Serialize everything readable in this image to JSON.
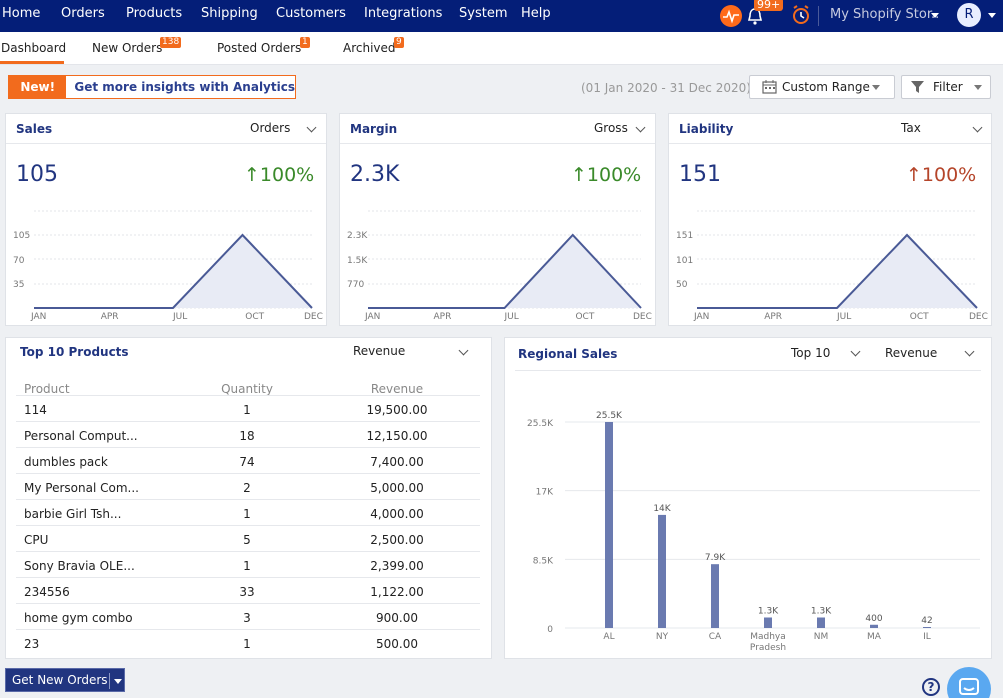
{
  "nav": {
    "items": [
      "Home",
      "Orders",
      "Products",
      "Shipping",
      "Customers",
      "Integrations",
      "System",
      "Help"
    ],
    "notification_count": "99+",
    "store": "My Shopify Stor..",
    "avatar_initial": "R"
  },
  "tabs": [
    {
      "label": "Dashboard",
      "badge": ""
    },
    {
      "label": "New Orders",
      "badge": "138"
    },
    {
      "label": "Posted Orders",
      "badge": "1"
    },
    {
      "label": "Archived",
      "badge": "9"
    }
  ],
  "banner": {
    "new_label": "New!",
    "text": "Get more insights with Analytics"
  },
  "toolbar": {
    "date_range": "(01 Jan 2020 - 31 Dec 2020)",
    "range_button": "Custom Range",
    "filter_button": "Filter"
  },
  "colors": {
    "navy": "#041e78",
    "accent": "#f26b1d",
    "title": "#213580",
    "up_green": "#2e8b2e",
    "up_red": "#b5452a",
    "chart_line": "#4a5a96",
    "chart_fill": "#e8ebf5",
    "bar": "#6a7ab0"
  },
  "cards": [
    {
      "title": "Sales",
      "select": "Orders",
      "value": "105",
      "change": "100%",
      "change_color": "#3a8a2a",
      "y_ticks": [
        "105",
        "70",
        "35"
      ],
      "x_ticks": [
        "JAN",
        "APR",
        "JUL",
        "OCT",
        "DEC"
      ]
    },
    {
      "title": "Margin",
      "select": "Gross",
      "value": "2.3K",
      "change": "100%",
      "change_color": "#3a8a2a",
      "y_ticks": [
        "2.3K",
        "1.5K",
        "770"
      ],
      "x_ticks": [
        "JAN",
        "APR",
        "JUL",
        "OCT",
        "DEC"
      ]
    },
    {
      "title": "Liability",
      "select": "Tax",
      "value": "151",
      "change": "100%",
      "change_color": "#b5452a",
      "y_ticks": [
        "151",
        "101",
        "50"
      ],
      "x_ticks": [
        "JAN",
        "APR",
        "JUL",
        "OCT",
        "DEC"
      ]
    }
  ],
  "top_products": {
    "title": "Top 10 Products",
    "select": "Revenue",
    "headers": [
      "Product",
      "Quantity",
      "Revenue"
    ],
    "rows": [
      [
        "114",
        "1",
        "19,500.00"
      ],
      [
        "Personal Comput...",
        "18",
        "12,150.00"
      ],
      [
        "dumbles pack",
        "74",
        "7,400.00"
      ],
      [
        "My Personal Com...",
        "2",
        "5,000.00"
      ],
      [
        "barbie Girl Tsh...",
        "1",
        "4,000.00"
      ],
      [
        "CPU",
        "5",
        "2,500.00"
      ],
      [
        "Sony Bravia OLE...",
        "1",
        "2,399.00"
      ],
      [
        "234556",
        "33",
        "1,122.00"
      ],
      [
        "home gym combo",
        "3",
        "900.00"
      ],
      [
        "23",
        "1",
        "500.00"
      ]
    ]
  },
  "regional": {
    "title": "Regional Sales",
    "select_top": "Top 10",
    "select_metric": "Revenue"
  },
  "chart_data": {
    "type": "bar",
    "categories": [
      "AL",
      "NY",
      "CA",
      "Madhya Pradesh",
      "NM",
      "MA",
      "IL"
    ],
    "category_labels": [
      [
        "AL"
      ],
      [
        "NY"
      ],
      [
        "CA"
      ],
      [
        "Madhya",
        "Pradesh"
      ],
      [
        "NM"
      ],
      [
        "MA"
      ],
      [
        "IL"
      ]
    ],
    "values": [
      25500,
      14000,
      7900,
      1300,
      1300,
      400,
      42
    ],
    "value_labels": [
      "25.5K",
      "14K",
      "7.9K",
      "1.3K",
      "1.3K",
      "400",
      "42"
    ],
    "y_ticks": [
      0,
      8500,
      17000,
      25500
    ],
    "y_tick_labels": [
      "0",
      "8.5K",
      "17K",
      "25.5K"
    ],
    "ylim": [
      0,
      25500
    ]
  },
  "bottom": {
    "get_orders": "Get New Orders",
    "help": "?"
  }
}
